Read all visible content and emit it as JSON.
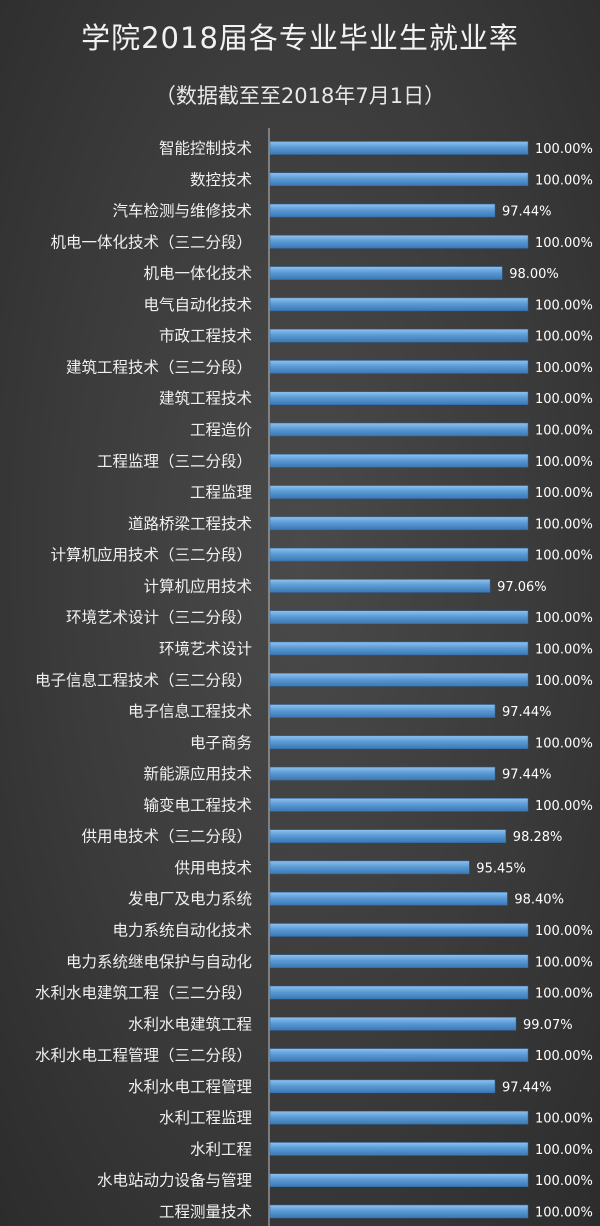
{
  "chart_data": {
    "type": "bar",
    "orientation": "horizontal",
    "title": "学院2018届各专业毕业生就业率",
    "subtitle": "（数据截至至2018年7月1日）",
    "categories": [
      "智能控制技术",
      "数控技术",
      "汽车检测与维修技术",
      "机电一体化技术（三二分段）",
      "机电一体化技术",
      "电气自动化技术",
      "市政工程技术",
      "建筑工程技术（三二分段）",
      "建筑工程技术",
      "工程造价",
      "工程监理（三二分段）",
      "工程监理",
      "道路桥梁工程技术",
      "计算机应用技术（三二分段）",
      "计算机应用技术",
      "环境艺术设计（三二分段）",
      "环境艺术设计",
      "电子信息工程技术（三二分段）",
      "电子信息工程技术",
      "电子商务",
      "新能源应用技术",
      "输变电工程技术",
      "供用电技术（三二分段）",
      "供用电技术",
      "发电厂及电力系统",
      "电力系统自动化技术",
      "电力系统继电保护与自动化",
      "水利水电建筑工程（三二分段）",
      "水利水电建筑工程",
      "水利水电工程管理（三二分段）",
      "水利水电工程管理",
      "水利工程监理",
      "水利工程",
      "水电站动力设备与管理",
      "工程测量技术"
    ],
    "values": [
      100,
      100,
      97.44,
      100,
      98,
      100,
      100,
      100,
      100,
      100,
      100,
      100,
      100,
      100,
      97.06,
      100,
      100,
      100,
      97.44,
      100,
      97.44,
      100,
      98.28,
      95.45,
      98.4,
      100,
      100,
      100,
      99.07,
      100,
      97.44,
      100,
      100,
      100,
      100
    ],
    "value_labels": [
      "100.00%",
      "100.00%",
      "97.44%",
      "100.00%",
      "98.00%",
      "100.00%",
      "100.00%",
      "100.00%",
      "100.00%",
      "100.00%",
      "100.00%",
      "100.00%",
      "100.00%",
      "100.00%",
      "97.06%",
      "100.00%",
      "100.00%",
      "100.00%",
      "97.44%",
      "100.00%",
      "97.44%",
      "100.00%",
      "98.28%",
      "95.45%",
      "98.40%",
      "100.00%",
      "100.00%",
      "100.00%",
      "99.07%",
      "100.00%",
      "97.44%",
      "100.00%",
      "100.00%",
      "100.00%",
      "100.00%"
    ],
    "bar_color": "#5b9bd5",
    "background_color": "#3a3a3a",
    "grid": false,
    "legend": "none"
  }
}
